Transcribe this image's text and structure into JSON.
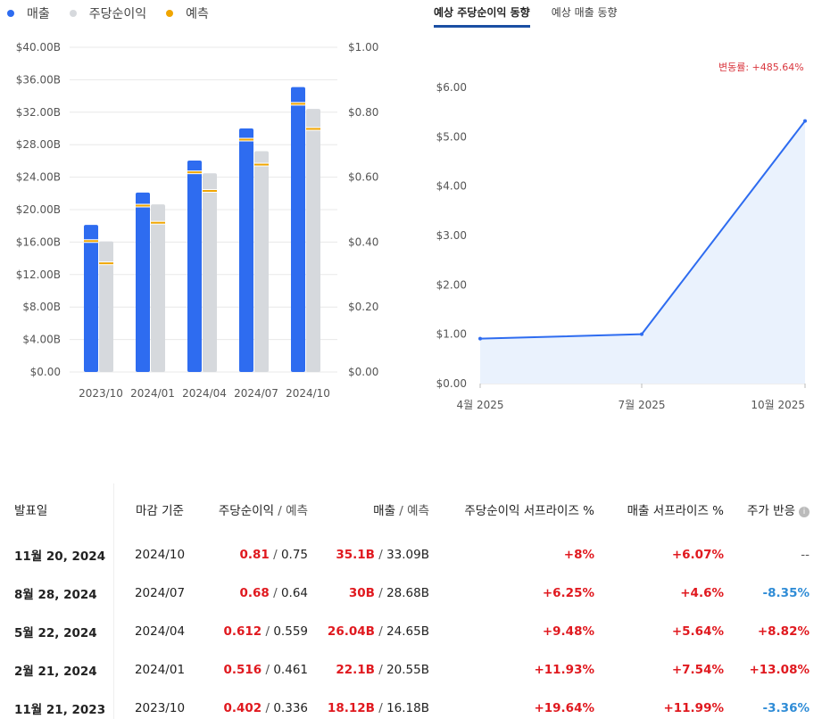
{
  "legend": {
    "revenue": "매출",
    "eps": "주당순이익",
    "forecast": "예측",
    "colors": {
      "revenue": "#2e6cf0",
      "eps": "#d6d9dd",
      "forecast": "#f0a500"
    }
  },
  "bar_chart": {
    "left_ticks": [
      "$0.00",
      "$4.00B",
      "$8.00B",
      "$12.00B",
      "$16.00B",
      "$20.00B",
      "$24.00B",
      "$28.00B",
      "$32.00B",
      "$36.00B",
      "$40.00B"
    ],
    "right_ticks": [
      "$0.00",
      "$0.20",
      "$0.40",
      "$0.60",
      "$0.80",
      "$1.00"
    ],
    "categories": [
      "2023/10",
      "2024/01",
      "2024/04",
      "2024/07",
      "2024/10"
    ]
  },
  "chart_data": [
    {
      "type": "bar",
      "categories": [
        "2023/10",
        "2024/01",
        "2024/04",
        "2024/07",
        "2024/10"
      ],
      "series": [
        {
          "name": "매출",
          "axis": "left",
          "unit": "B USD",
          "values": [
            18.12,
            22.1,
            26.04,
            30.0,
            35.1
          ],
          "forecast": [
            16.18,
            20.55,
            24.65,
            28.68,
            33.09
          ]
        },
        {
          "name": "주당순이익",
          "axis": "right",
          "unit": "USD",
          "values": [
            0.402,
            0.516,
            0.612,
            0.68,
            0.81
          ],
          "forecast": [
            0.336,
            0.461,
            0.559,
            0.64,
            0.75
          ]
        }
      ],
      "ylim_left": [
        0,
        40
      ],
      "ylim_right": [
        0,
        1.0
      ],
      "grid": true
    },
    {
      "type": "area",
      "x": [
        "4월 2025",
        "7월 2025",
        "10월 2025"
      ],
      "values": [
        0.91,
        1.0,
        5.32
      ],
      "ylim": [
        0,
        6
      ],
      "ticks": [
        "$0.00",
        "$1.00",
        "$2.00",
        "$3.00",
        "$4.00",
        "$5.00",
        "$6.00"
      ],
      "color": "#2e6cf0"
    }
  ],
  "tabs": [
    {
      "label": "예상 주당순이익 동향",
      "active": true
    },
    {
      "label": "예상 매출 동향",
      "active": false
    }
  ],
  "change_label": "변동률: +485.64%",
  "table": {
    "headers": {
      "date": "발표일",
      "period": "마감 기준",
      "eps_a": "주당순이익",
      "eps_b": "예측",
      "rev_a": "매출",
      "rev_b": "예측",
      "eps_surprise": "주당순이익 서프라이즈 %",
      "rev_surprise": "매출 서프라이즈 %",
      "price": "주가 반응",
      "info_icon": "i"
    },
    "sep": "/",
    "rows": [
      {
        "date": "11월 20, 2024",
        "period": "2024/10",
        "eps": "0.81",
        "eps_f": "0.75",
        "rev": "35.1B",
        "rev_f": "33.09B",
        "eps_s": "+8%",
        "rev_s": "+6.07%",
        "price": "--",
        "price_tone": "grey"
      },
      {
        "date": "8월 28, 2024",
        "period": "2024/07",
        "eps": "0.68",
        "eps_f": "0.64",
        "rev": "30B",
        "rev_f": "28.68B",
        "eps_s": "+6.25%",
        "rev_s": "+4.6%",
        "price": "-8.35%",
        "price_tone": "blue"
      },
      {
        "date": "5월 22, 2024",
        "period": "2024/04",
        "eps": "0.612",
        "eps_f": "0.559",
        "rev": "26.04B",
        "rev_f": "24.65B",
        "eps_s": "+9.48%",
        "rev_s": "+5.64%",
        "price": "+8.82%",
        "price_tone": "red"
      },
      {
        "date": "2월 21, 2024",
        "period": "2024/01",
        "eps": "0.516",
        "eps_f": "0.461",
        "rev": "22.1B",
        "rev_f": "20.55B",
        "eps_s": "+11.93%",
        "rev_s": "+7.54%",
        "price": "+13.08%",
        "price_tone": "red"
      },
      {
        "date": "11월 21, 2023",
        "period": "2023/10",
        "eps": "0.402",
        "eps_f": "0.336",
        "rev": "18.12B",
        "rev_f": "16.18B",
        "eps_s": "+19.64%",
        "rev_s": "+11.99%",
        "price": "-3.36%",
        "price_tone": "blue"
      }
    ]
  }
}
